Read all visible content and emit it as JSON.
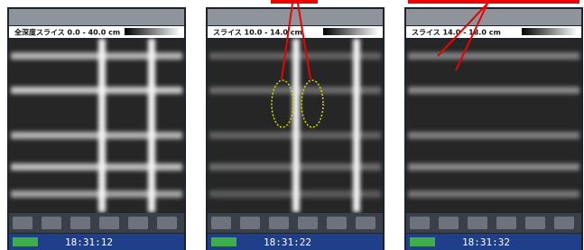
{
  "panels": [
    {
      "slice_label": "全深度スライス 0.0 - 40.0 cm",
      "time": "18:31:12"
    },
    {
      "slice_label": "スライス 10.0 - 14.0 cm",
      "time": "18:31:22"
    },
    {
      "slice_label": "スライス 14.0 - 18.0 cm",
      "time": "18:31:32"
    }
  ]
}
